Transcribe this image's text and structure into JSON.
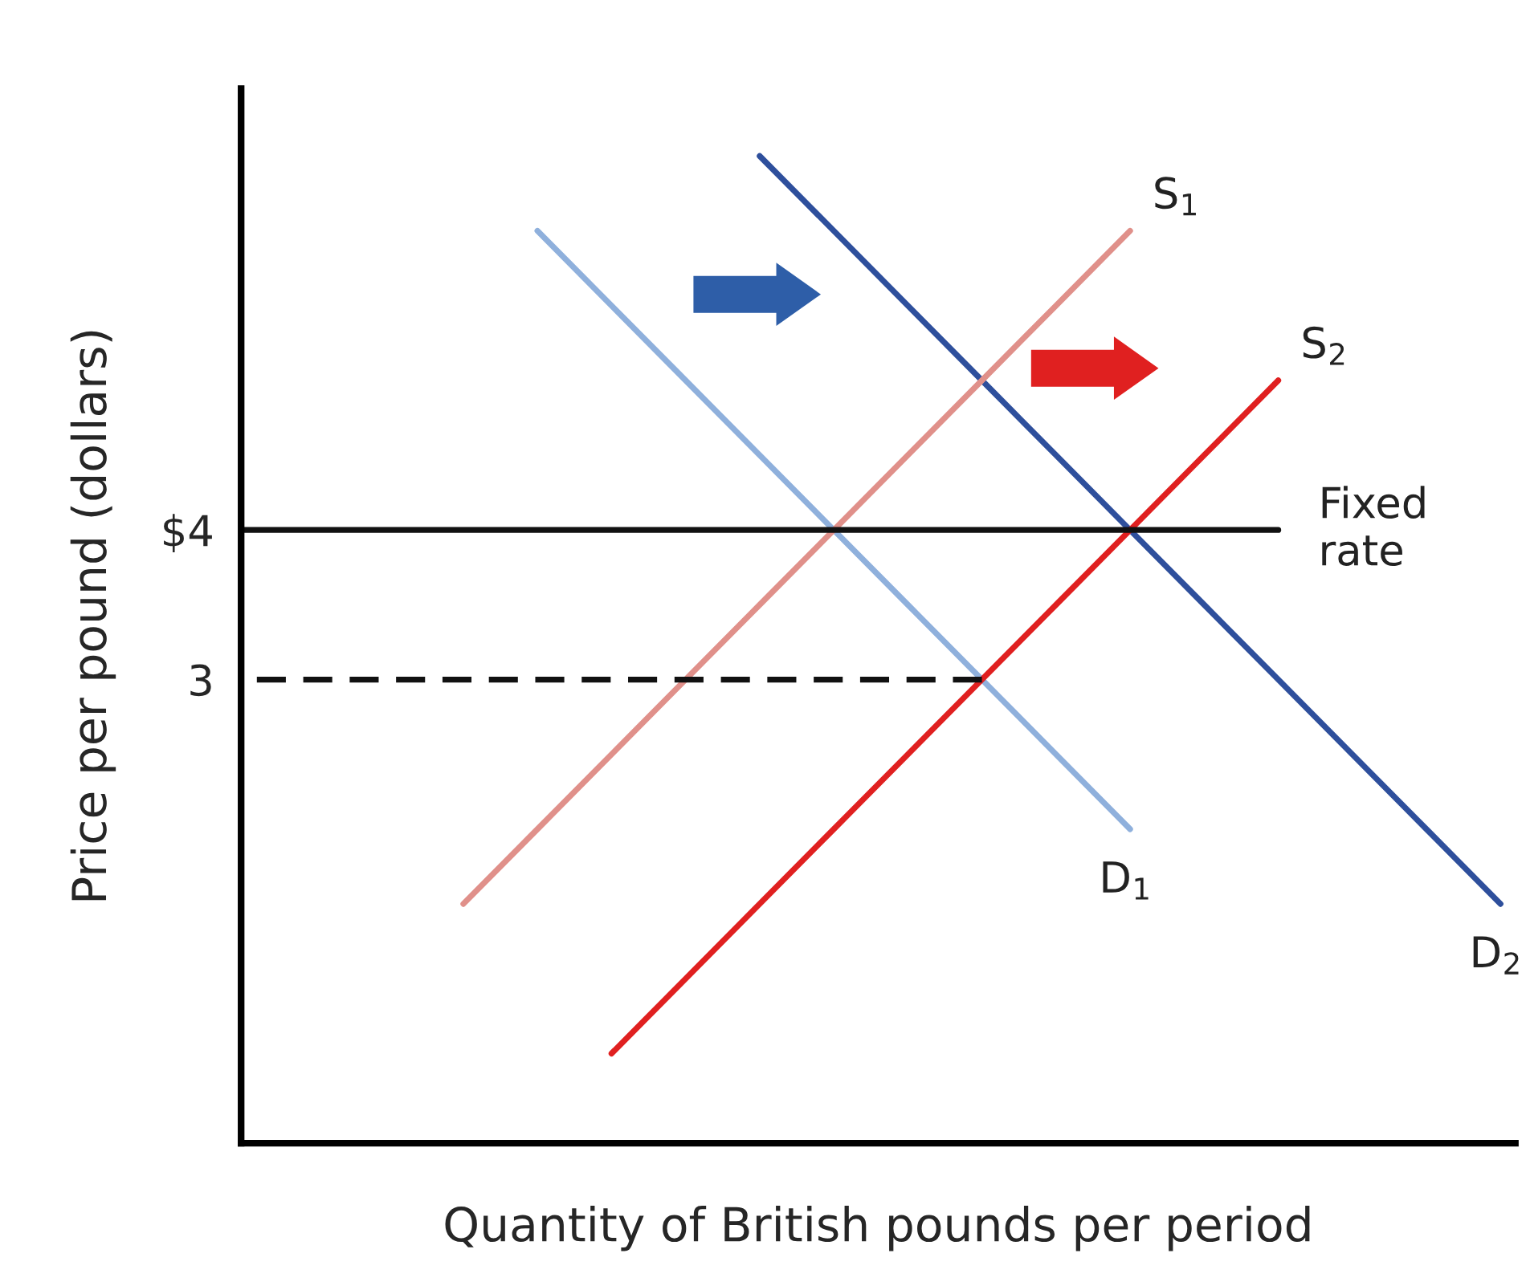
{
  "chart_data": {
    "type": "line",
    "xlabel": "Quantity of British pounds per period",
    "ylabel": "Price per pound (dollars)",
    "categories": [
      null,
      null,
      null,
      null,
      null,
      null,
      null,
      null,
      null,
      null,
      null,
      null,
      null,
      null,
      null,
      null,
      null,
      null
    ],
    "ylim": [
      -0.1,
      6.95
    ],
    "yticks": [
      {
        "value": 4,
        "label": "$4"
      },
      3
    ],
    "tick_labels": "y",
    "grid": false,
    "legend": false,
    "marker": "none",
    "series": [
      {
        "name": "D$_{1}$",
        "color": "#8fb0dc",
        "values": [
          null,
          null,
          null,
          null,
          6.0,
          5.5,
          5.0,
          4.5,
          4.0,
          3.5,
          3.0,
          2.5,
          2.0,
          null,
          null,
          null,
          null,
          null
        ]
      },
      {
        "name": "D$_{2}$",
        "color": "#2e4f9c",
        "values": [
          null,
          null,
          null,
          null,
          null,
          null,
          null,
          6.5,
          6.0,
          5.5,
          5.0,
          4.5,
          4.0,
          3.5,
          3.0,
          2.5,
          2.0,
          1.5
        ]
      },
      {
        "name": "S$_{1}$",
        "color": "#e0908a",
        "values": [
          null,
          null,
          null,
          1.5,
          2.0,
          2.5,
          3.0,
          3.5,
          4.0,
          4.5,
          5.0,
          5.5,
          6.0,
          null,
          null,
          null,
          null,
          null
        ]
      },
      {
        "name": "S$_{2}$",
        "color": "#e02020",
        "values": [
          null,
          null,
          null,
          null,
          null,
          0.5,
          1.0,
          1.5,
          2.0,
          2.5,
          3.0,
          3.5,
          4.0,
          4.5,
          5.0,
          null,
          null,
          null
        ]
      },
      {
        "name": "Fixed rate",
        "color": "#111111",
        "values": [
          4,
          4,
          4,
          4,
          4,
          4,
          4,
          4,
          4,
          4,
          4,
          4,
          4,
          4,
          4,
          null,
          null,
          null
        ]
      },
      {
        "color": "#111111",
        "line_style": "dashed",
        "values": [
          3,
          3,
          3,
          3,
          3,
          3,
          3,
          3,
          3,
          3,
          3,
          null,
          null,
          null,
          null,
          null,
          null,
          null
        ]
      }
    ]
  }
}
